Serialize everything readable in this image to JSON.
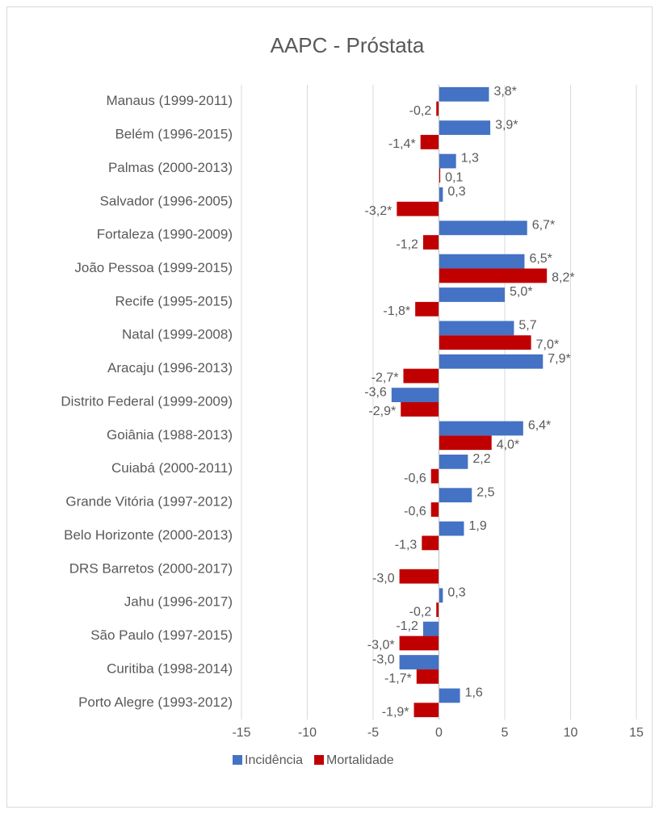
{
  "chart_data": {
    "type": "hbar",
    "title": "AAPC - Próstata",
    "categories": [
      "Manaus (1999-2011)",
      "Belém (1996-2015)",
      "Palmas (2000-2013)",
      "Salvador (1996-2005)",
      "Fortaleza (1990-2009)",
      "João Pessoa (1999-2015)",
      "Recife (1995-2015)",
      "Natal (1999-2008)",
      "Aracaju (1996-2013)",
      "Distrito Federal (1999-2009)",
      "Goiânia (1988-2013)",
      "Cuiabá (2000-2011)",
      "Grande Vitória (1997-2012)",
      "Belo Horizonte (2000-2013)",
      "DRS Barretos (2000-2017)",
      "Jahu (1996-2017)",
      "São Paulo (1997-2015)",
      "Curitiba (1998-2014)",
      "Porto Alegre (1993-2012)"
    ],
    "series": [
      {
        "name": "Incidência",
        "color": "#4472c4",
        "values": [
          3.8,
          3.9,
          1.3,
          0.3,
          6.7,
          6.5,
          5.0,
          5.7,
          7.9,
          -3.6,
          6.4,
          2.2,
          2.5,
          1.9,
          null,
          0.3,
          -1.2,
          -3.0,
          1.6
        ],
        "value_labels": [
          "3,8*",
          "3,9*",
          "1,3",
          "0,3",
          "6,7*",
          "6,5*",
          "5,0*",
          "5,7",
          "7,9*",
          "-3,6",
          "6,4*",
          "2,2",
          "2,5",
          "1,9",
          null,
          "0,3",
          "-1,2",
          "-3,0",
          "1,6"
        ]
      },
      {
        "name": "Mortalidade",
        "color": "#c00000",
        "values": [
          -0.2,
          -1.4,
          0.1,
          -3.2,
          -1.2,
          8.2,
          -1.8,
          7.0,
          -2.7,
          -2.9,
          4.0,
          -0.6,
          -0.6,
          -1.3,
          -3.0,
          -0.2,
          -3.0,
          -1.7,
          -1.9
        ],
        "value_labels": [
          "-0,2",
          "-1,4*",
          "0,1",
          "-3,2*",
          "-1,2",
          "8,2*",
          "-1,8*",
          "7,0*",
          "-2,7*",
          "-2,9*",
          "4,0*",
          "-0,6",
          "-0,6",
          "-1,3",
          "-3,0",
          "-0,2",
          "-3,0*",
          "-1,7*",
          "-1,9*"
        ]
      }
    ],
    "xlim": [
      -15,
      15
    ],
    "xticks": [
      -15,
      -10,
      -5,
      0,
      5,
      10,
      15
    ],
    "grid": true,
    "legend": "bottom"
  }
}
